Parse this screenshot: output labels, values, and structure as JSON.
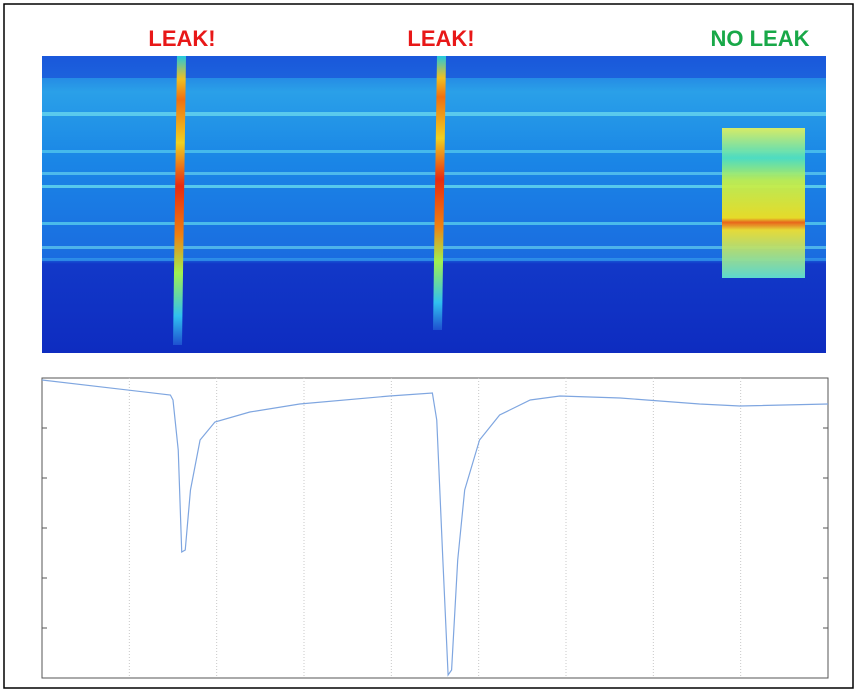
{
  "chart_data": {
    "type": "line",
    "annotations": [
      "LEAK!",
      "LEAK!",
      "NO LEAK"
    ],
    "x": [
      0,
      1.47,
      1.5,
      1.56,
      1.6,
      1.64,
      1.7,
      1.81,
      1.98,
      2.38,
      2.95,
      3.98,
      4.47,
      4.52,
      4.59,
      4.65,
      4.69,
      4.76,
      4.84,
      5.01,
      5.24,
      5.59,
      5.93,
      6.62,
      7.53,
      7.99,
      9
    ],
    "series": [
      {
        "color": "#7fa6e0",
        "values": [
          5.96,
          5.66,
          5.56,
          4.56,
          2.52,
          2.56,
          3.76,
          4.76,
          5.12,
          5.32,
          5.48,
          5.64,
          5.7,
          5.16,
          2.36,
          0.06,
          0.16,
          2.36,
          3.76,
          4.76,
          5.26,
          5.56,
          5.64,
          5.6,
          5.48,
          5.44,
          5.48
        ]
      }
    ],
    "xlim": [
      0,
      9
    ],
    "ylim": [
      0,
      6
    ],
    "grid": true
  }
}
